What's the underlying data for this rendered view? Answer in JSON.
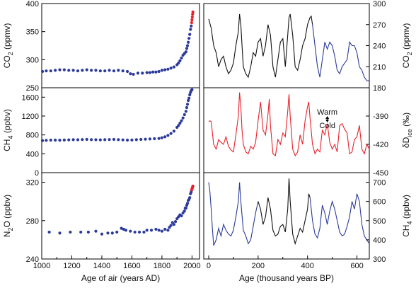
{
  "chart_data": [
    {
      "type": "scatter",
      "panel": "left-top",
      "xlim": [
        1000,
        2050
      ],
      "ylim": [
        250,
        400
      ],
      "yticks": [
        "250",
        "300",
        "350",
        "400"
      ],
      "ylabel": "CO2 (ppmv)",
      "ylabel_main": "CO",
      "ylabel_sub": "2",
      "ylabel_unit": " (ppmv)",
      "series": [
        {
          "color": "#2b3a9a",
          "x": [
            1005,
            1030,
            1060,
            1090,
            1120,
            1150,
            1180,
            1210,
            1240,
            1270,
            1300,
            1330,
            1360,
            1390,
            1420,
            1450,
            1480,
            1510,
            1540,
            1570,
            1590,
            1610,
            1640,
            1670,
            1700,
            1720,
            1740,
            1760,
            1780,
            1800,
            1820,
            1840,
            1860,
            1880,
            1900,
            1910,
            1920,
            1930,
            1940,
            1950,
            1960,
            1965,
            1970,
            1975,
            1980,
            1985,
            1990,
            1995
          ],
          "y": [
            279,
            280,
            280,
            281,
            282,
            282,
            281,
            281,
            280,
            281,
            282,
            281,
            281,
            280,
            280,
            281,
            280,
            281,
            280,
            279,
            275,
            274,
            276,
            276,
            277,
            277,
            278,
            278,
            279,
            281,
            282,
            283,
            285,
            287,
            291,
            294,
            298,
            303,
            308,
            311,
            314,
            320,
            325,
            331,
            338,
            345,
            354,
            360
          ]
        },
        {
          "color": "#e8212b",
          "x": [
            1998,
            2000,
            2002,
            2004,
            2006
          ],
          "y": [
            366,
            371,
            376,
            381,
            385
          ]
        }
      ]
    },
    {
      "type": "scatter",
      "panel": "left-middle",
      "xlim": [
        1000,
        2050
      ],
      "ylim": [
        0,
        1800
      ],
      "yticks": [
        "0",
        "400",
        "800",
        "1200",
        "1600"
      ],
      "ylabel": "CH4 (ppbv)",
      "ylabel_main": "CH",
      "ylabel_sub": "4",
      "ylabel_unit": " (ppbv)",
      "series": [
        {
          "color": "#2b3a9a",
          "x": [
            1005,
            1030,
            1060,
            1090,
            1120,
            1150,
            1180,
            1210,
            1240,
            1270,
            1300,
            1330,
            1360,
            1390,
            1420,
            1450,
            1480,
            1510,
            1540,
            1570,
            1600,
            1630,
            1660,
            1690,
            1720,
            1750,
            1780,
            1800,
            1820,
            1840,
            1860,
            1880,
            1900,
            1910,
            1920,
            1930,
            1940,
            1950,
            1960,
            1965,
            1970,
            1975,
            1980,
            1985,
            1990,
            1995,
            2000
          ],
          "y": [
            680,
            685,
            690,
            690,
            688,
            692,
            695,
            700,
            698,
            702,
            705,
            700,
            698,
            695,
            700,
            702,
            705,
            700,
            695,
            690,
            692,
            700,
            705,
            710,
            715,
            720,
            725,
            740,
            760,
            790,
            830,
            880,
            960,
            1000,
            1050,
            1100,
            1160,
            1230,
            1300,
            1380,
            1450,
            1530,
            1580,
            1650,
            1700,
            1740,
            1760
          ]
        }
      ]
    },
    {
      "type": "scatter",
      "panel": "left-bottom",
      "xlim": [
        1000,
        2050
      ],
      "ylim": [
        240,
        330
      ],
      "yticks": [
        "240",
        "280",
        "320"
      ],
      "xticks": [
        "1000",
        "1200",
        "1400",
        "1600",
        "1800",
        "2000"
      ],
      "xticks_v": [
        1000,
        1200,
        1400,
        1600,
        1800,
        2000
      ],
      "xticks_minor": [
        1100,
        1300,
        1500,
        1700,
        1900
      ],
      "xlabel": "Age of air (years AD)",
      "ylabel": "N2O (ppbv)",
      "ylabel_main": "N",
      "ylabel_sub": "2",
      "ylabel_unit": "O (ppbv)",
      "series": [
        {
          "color": "#2b3a9a",
          "x": [
            1050,
            1120,
            1190,
            1260,
            1310,
            1360,
            1400,
            1440,
            1470,
            1500,
            1530,
            1545,
            1560,
            1590,
            1620,
            1650,
            1680,
            1700,
            1730,
            1760,
            1780,
            1800,
            1820,
            1840,
            1850,
            1860,
            1870,
            1880,
            1890,
            1900,
            1910,
            1920,
            1930,
            1940,
            1950,
            1955,
            1960,
            1965,
            1970,
            1975,
            1980,
            1985,
            1990,
            1995
          ],
          "y": [
            268,
            267,
            268,
            268,
            268,
            269,
            266,
            267,
            267,
            268,
            272,
            271,
            270,
            269,
            268,
            268,
            268,
            270,
            270,
            271,
            270,
            269,
            271,
            270,
            273,
            275,
            278,
            276,
            279,
            282,
            284,
            286,
            285,
            288,
            290,
            293,
            293,
            296,
            298,
            301,
            302,
            304,
            308,
            310
          ]
        },
        {
          "color": "#e8212b",
          "x": [
            1998,
            2000,
            2002,
            2004,
            2006
          ],
          "y": [
            312,
            313,
            314,
            315,
            316
          ]
        }
      ]
    },
    {
      "type": "line",
      "panel": "right-top",
      "xlim": [
        -20,
        650
      ],
      "ylim": [
        180,
        300
      ],
      "yticks": [
        "180",
        "210",
        "240",
        "270",
        "300"
      ],
      "ylabel": "CO2 (ppmv)",
      "ylabel_main": "CO",
      "ylabel_sub": "2",
      "ylabel_unit": " (ppmv)",
      "series": [
        {
          "color": "#111111",
          "x": [
            0,
            10,
            20,
            30,
            40,
            50,
            60,
            70,
            80,
            90,
            100,
            110,
            120,
            125,
            130,
            135,
            140,
            150,
            160,
            170,
            180,
            190,
            200,
            210,
            220,
            230,
            240,
            250,
            260,
            270,
            280,
            290,
            300,
            310,
            320,
            325,
            330,
            340,
            350,
            360,
            370,
            380,
            390,
            400,
            405,
            410,
            415,
            420
          ],
          "y": [
            278,
            265,
            240,
            230,
            210,
            220,
            225,
            210,
            200,
            205,
            215,
            240,
            260,
            285,
            270,
            240,
            210,
            200,
            195,
            210,
            230,
            225,
            245,
            250,
            225,
            240,
            270,
            255,
            210,
            195,
            220,
            245,
            250,
            210,
            255,
            280,
            285,
            255,
            210,
            205,
            220,
            240,
            250,
            270,
            275,
            280,
            282,
            270
          ]
        },
        {
          "color": "#2b3a9a",
          "x": [
            420,
            430,
            440,
            450,
            460,
            470,
            480,
            490,
            500,
            510,
            520,
            530,
            540,
            550,
            560,
            570,
            580,
            590,
            600,
            610,
            620,
            630,
            640,
            650
          ],
          "y": [
            270,
            240,
            210,
            195,
            220,
            245,
            235,
            245,
            240,
            225,
            205,
            200,
            210,
            215,
            220,
            245,
            240,
            240,
            230,
            210,
            205,
            195,
            190,
            190
          ]
        }
      ]
    },
    {
      "type": "line",
      "panel": "right-middle",
      "xlim": [
        -20,
        650
      ],
      "ylim": [
        -450,
        -360
      ],
      "yticks": [
        "-390",
        "-420",
        "-450"
      ],
      "ylabel": "δDice (‰)",
      "ylabel_main": "δD",
      "ylabel_sub": "ice",
      "ylabel_unit": " (‰)",
      "annotation_warm": "Warm",
      "annotation_cold": "Cold",
      "series": [
        {
          "color": "#e8212b",
          "x": [
            0,
            5,
            10,
            20,
            30,
            40,
            50,
            60,
            70,
            80,
            90,
            100,
            110,
            120,
            125,
            130,
            135,
            140,
            150,
            160,
            170,
            180,
            190,
            200,
            210,
            220,
            230,
            240,
            245,
            250,
            260,
            270,
            280,
            290,
            300,
            310,
            320,
            325,
            330,
            340,
            350,
            360,
            370,
            380,
            390,
            400,
            405,
            410,
            420,
            430,
            440,
            450,
            460,
            470,
            480,
            490,
            500,
            510,
            520,
            530,
            540,
            550,
            560,
            570,
            580,
            590,
            600,
            610,
            620,
            630,
            640,
            650
          ],
          "y": [
            -396,
            -395,
            -396,
            -420,
            -425,
            -415,
            -418,
            -420,
            -412,
            -422,
            -426,
            -428,
            -410,
            -390,
            -365,
            -380,
            -405,
            -420,
            -428,
            -430,
            -422,
            -425,
            -418,
            -395,
            -375,
            -405,
            -410,
            -388,
            -372,
            -400,
            -430,
            -432,
            -415,
            -420,
            -408,
            -412,
            -385,
            -367,
            -390,
            -425,
            -432,
            -428,
            -410,
            -420,
            -395,
            -380,
            -375,
            -392,
            -420,
            -430,
            -425,
            -428,
            -405,
            -410,
            -398,
            -418,
            -425,
            -420,
            -428,
            -400,
            -398,
            -404,
            -408,
            -430,
            -428,
            -415,
            -412,
            -400,
            -425,
            -430,
            -420,
            -425
          ]
        }
      ]
    },
    {
      "type": "line",
      "panel": "right-bottom",
      "xlim": [
        -20,
        650
      ],
      "ylim": [
        300,
        750
      ],
      "yticks": [
        "300",
        "400",
        "500",
        "600",
        "700"
      ],
      "xticks": [
        "0",
        "200",
        "400",
        "600"
      ],
      "xticks_v": [
        0,
        200,
        400,
        600
      ],
      "xticks_minor": [
        100,
        300,
        500
      ],
      "xlabel": "Age (thousand years BP)",
      "ylabel": "CH4 (ppbv)",
      "ylabel_main": "CH",
      "ylabel_sub": "4",
      "ylabel_unit": " (ppbv)",
      "series": [
        {
          "color": "#2b3a9a",
          "x": [
            0,
            5,
            10,
            15,
            20,
            30,
            40,
            50,
            60,
            70,
            80,
            90,
            100,
            110,
            120,
            125,
            130,
            140,
            150,
            160,
            170,
            180,
            190,
            200
          ],
          "y": [
            700,
            650,
            560,
            460,
            370,
            400,
            460,
            420,
            480,
            450,
            430,
            420,
            450,
            520,
            600,
            700,
            600,
            450,
            420,
            380,
            400,
            470,
            540,
            600
          ]
        },
        {
          "color": "#111111",
          "x": [
            200,
            210,
            220,
            230,
            240,
            250,
            260,
            270,
            280,
            290,
            300,
            310,
            320,
            325,
            330,
            340,
            350,
            360,
            370,
            380,
            390,
            400,
            405,
            410
          ],
          "y": [
            600,
            560,
            480,
            520,
            620,
            560,
            450,
            420,
            430,
            470,
            480,
            440,
            560,
            720,
            600,
            430,
            380,
            420,
            460,
            440,
            500,
            560,
            640,
            620
          ]
        },
        {
          "color": "#2b3a9a",
          "x": [
            410,
            420,
            430,
            440,
            450,
            460,
            470,
            480,
            490,
            500,
            510,
            520,
            530,
            540,
            550,
            560,
            570,
            580,
            590,
            600,
            610,
            620,
            630,
            640,
            650
          ],
          "y": [
            620,
            500,
            430,
            410,
            460,
            580,
            540,
            480,
            550,
            600,
            560,
            500,
            440,
            420,
            430,
            470,
            520,
            600,
            560,
            640,
            600,
            480,
            420,
            400,
            380
          ]
        }
      ]
    }
  ]
}
